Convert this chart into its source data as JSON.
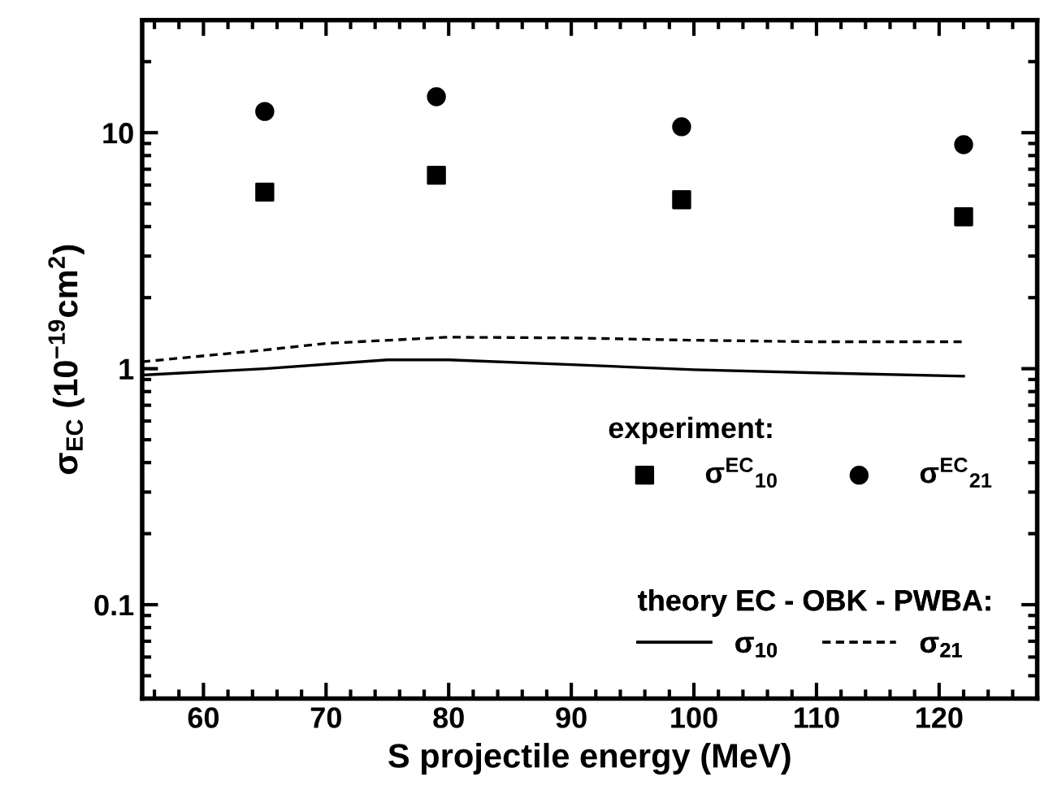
{
  "chart_data": {
    "type": "scatter",
    "xlabel": "S projectile energy (MeV)",
    "ylabel": "σ$_{EC}$ (10$^{−19}$cm$^{2}$)",
    "log": "y",
    "xlim": [
      55,
      128
    ],
    "ylim": [
      0.04,
      30
    ],
    "xticks": [
      60,
      70,
      80,
      90,
      100,
      110,
      120
    ],
    "yticks": [
      0.1,
      1,
      10
    ],
    "legend": "bottom right",
    "grid": false,
    "annotations": [
      "experiment:",
      "theory EC - OBK - PWBA:"
    ],
    "series": [
      {
        "name": "σ$^{EC}$$_{10}$",
        "marker": "square",
        "color": "#000000",
        "x": [
          65,
          79,
          99,
          122
        ],
        "values": [
          5.6,
          6.6,
          5.2,
          4.4
        ]
      },
      {
        "name": "σ$^{EC}$$_{21}$",
        "marker": "circle",
        "color": "#000000",
        "x": [
          65,
          79,
          99,
          122
        ],
        "values": [
          12.3,
          14.2,
          10.6,
          8.9
        ]
      },
      {
        "name": "σ$_{10}$",
        "type": "line",
        "line_style": "solid",
        "color": "#000000",
        "x": [
          55,
          65,
          75,
          80,
          90,
          100,
          110,
          122
        ],
        "values": [
          0.94,
          1.0,
          1.09,
          1.09,
          1.04,
          0.99,
          0.96,
          0.93
        ]
      },
      {
        "name": "σ$_{21}$",
        "type": "line",
        "line_style": "dashed",
        "color": "#000000",
        "x": [
          55,
          65,
          70,
          80,
          90,
          100,
          110,
          122
        ],
        "values": [
          1.07,
          1.2,
          1.28,
          1.36,
          1.35,
          1.32,
          1.3,
          1.3
        ]
      }
    ]
  }
}
